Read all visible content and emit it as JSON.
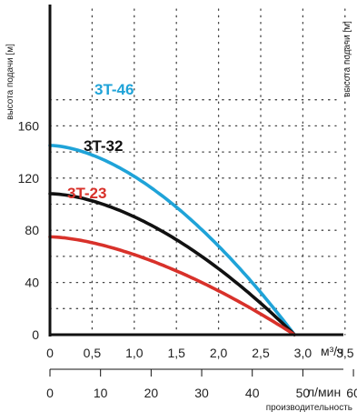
{
  "chart_data": {
    "type": "line",
    "y_axis": {
      "label": "высота подачи [м]",
      "ticks": [
        0,
        40,
        80,
        120,
        160
      ],
      "range": [
        0,
        190
      ]
    },
    "x_axis_primary": {
      "unit": "м³/ч",
      "ticks": [
        "0",
        "0,5",
        "1,0",
        "1,5",
        "2,0",
        "2,5",
        "3,0",
        "3,5"
      ],
      "range": [
        0,
        4
      ]
    },
    "x_axis_secondary": {
      "unit": "л/мин",
      "label": "производительность",
      "ticks": [
        "0",
        "10",
        "20",
        "30",
        "40",
        "50",
        "60"
      ],
      "values": [
        0,
        10,
        20,
        30,
        40,
        50,
        60
      ]
    },
    "grid": "dotted",
    "series": [
      {
        "name": "3T-46",
        "color": "#1fa3d8",
        "h0": 145,
        "q_max": 2.9,
        "shape": 1.7
      },
      {
        "name": "3T-32",
        "color": "#111111",
        "h0": 108,
        "q_max": 2.9,
        "shape": 1.7
      },
      {
        "name": "3T-23",
        "color": "#d8312a",
        "h0": 75,
        "q_max": 2.9,
        "shape": 1.6
      }
    ]
  }
}
